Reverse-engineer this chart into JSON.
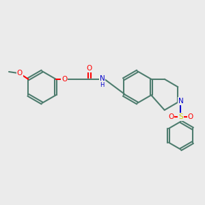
{
  "bg_color": "#ebebeb",
  "bond_color": "#4d7c6e",
  "bond_width": 1.5,
  "dbo": 0.055,
  "atom_colors": {
    "O": "#ff0000",
    "N": "#0000cd",
    "S": "#cccc00",
    "C": "#4d7c6e"
  },
  "fs": 7.5,
  "fig_size": [
    3.0,
    3.0
  ],
  "dpi": 100,
  "xlim": [
    0,
    10
  ],
  "ylim": [
    0,
    10
  ]
}
